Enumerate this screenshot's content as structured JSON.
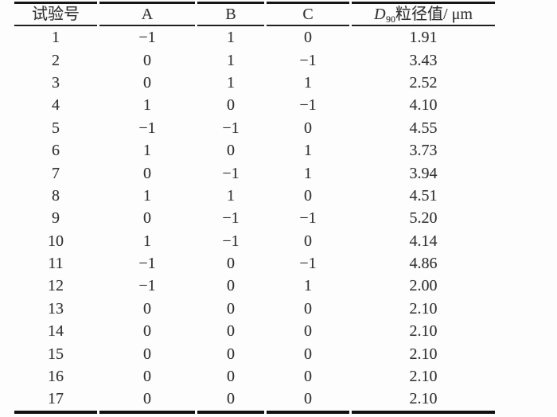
{
  "document_type": "scanned-paper-table",
  "colors": {
    "background": "#fdfdfd",
    "text": "#333333",
    "rule": "#161616"
  },
  "table": {
    "columns": [
      {
        "key": "run",
        "label": "试验号"
      },
      {
        "key": "A",
        "label": "A"
      },
      {
        "key": "B",
        "label": "B"
      },
      {
        "key": "C",
        "label": "C"
      },
      {
        "key": "d90",
        "symbol": "D",
        "subscript": "90",
        "rest": "粒径值/ μm"
      }
    ],
    "rows": [
      [
        "1",
        "−1",
        "1",
        "0",
        "1.91"
      ],
      [
        "2",
        "0",
        "1",
        "−1",
        "3.43"
      ],
      [
        "3",
        "0",
        "1",
        "1",
        "2.52"
      ],
      [
        "4",
        "1",
        "0",
        "−1",
        "4.10"
      ],
      [
        "5",
        "−1",
        "−1",
        "0",
        "4.55"
      ],
      [
        "6",
        "1",
        "0",
        "1",
        "3.73"
      ],
      [
        "7",
        "0",
        "−1",
        "1",
        "3.94"
      ],
      [
        "8",
        "1",
        "1",
        "0",
        "4.51"
      ],
      [
        "9",
        "0",
        "−1",
        "−1",
        "5.20"
      ],
      [
        "10",
        "1",
        "−1",
        "0",
        "4.14"
      ],
      [
        "11",
        "−1",
        "0",
        "−1",
        "4.86"
      ],
      [
        "12",
        "−1",
        "0",
        "1",
        "2.00"
      ],
      [
        "13",
        "0",
        "0",
        "0",
        "2.10"
      ],
      [
        "14",
        "0",
        "0",
        "0",
        "2.10"
      ],
      [
        "15",
        "0",
        "0",
        "0",
        "2.10"
      ],
      [
        "16",
        "0",
        "0",
        "0",
        "2.10"
      ],
      [
        "17",
        "0",
        "0",
        "0",
        "2.10"
      ]
    ]
  }
}
